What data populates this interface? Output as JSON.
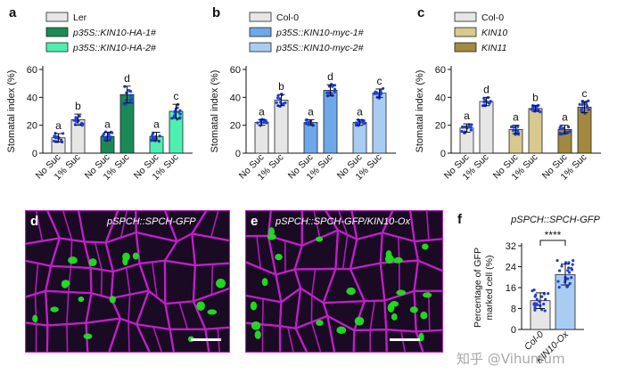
{
  "panels": {
    "a": {
      "letter": "a"
    },
    "b": {
      "letter": "b"
    },
    "c": {
      "letter": "c"
    },
    "d": {
      "letter": "d",
      "label": "pSPCH::SPCH-GFP"
    },
    "e": {
      "letter": "e",
      "label": "pSPCH::SPCH-GFP/KIN10-Ox"
    },
    "f": {
      "letter": "f"
    }
  },
  "watermark": "知乎 @Vihumum",
  "colors": {
    "magenta": "#c020c8",
    "gfp": "#22e022",
    "dot_blue": "#1f3fd6",
    "a_ctrl": "#e6e6e6",
    "a_s1": "#1a8a55",
    "a_s2": "#4ef0b0",
    "b_ctrl": "#e6e6e6",
    "b_s1": "#6fa8e8",
    "b_s2": "#a9cdf2",
    "c_ctrl": "#e6e6e6",
    "c_s1": "#d8c98e",
    "c_s2": "#a2893f",
    "f_ctrl": "#e6e6e6",
    "f_s1": "#a9cdf2"
  },
  "chart_data": [
    {
      "id": "a",
      "type": "bar",
      "legend": [
        "Ler",
        "p35S::KIN10-HA-1#",
        "p35S::KIN10-HA-2#"
      ],
      "categories": [
        "No Suc",
        "1% Suc",
        "No Suc",
        "1% Suc",
        "No Suc",
        "1% Suc"
      ],
      "values": [
        11,
        24,
        12,
        42,
        12,
        30
      ],
      "errors": [
        3,
        4,
        3,
        6,
        3,
        5
      ],
      "letters": [
        "a",
        "b",
        "a",
        "d",
        "a",
        "c"
      ],
      "ylabel": "Stomatal index (%)",
      "ylim": [
        0,
        60
      ],
      "yticks": [
        0,
        20,
        40,
        60
      ]
    },
    {
      "id": "b",
      "type": "bar",
      "legend": [
        "Col-0",
        "p35S::KIN10-myc-1#",
        "p35S::KIN10-myc-2#"
      ],
      "categories": [
        "No Suc",
        "1% Suc",
        "No Suc",
        "1% Suc",
        "No Suc",
        "1% Suc"
      ],
      "values": [
        22,
        38,
        22,
        45,
        22,
        43
      ],
      "errors": [
        2,
        4,
        2,
        4,
        2,
        3
      ],
      "letters": [
        "a",
        "b",
        "a",
        "d",
        "a",
        "c"
      ],
      "ylabel": "Stomatal index (%)",
      "ylim": [
        0,
        60
      ],
      "yticks": [
        0,
        20,
        40,
        60
      ]
    },
    {
      "id": "c",
      "type": "bar",
      "legend": [
        "Col-0",
        "KIN10",
        "KIN11"
      ],
      "categories": [
        "No Suc",
        "1% Suc",
        "No Suc",
        "1% Suc",
        "No Suc",
        "1% Suc"
      ],
      "values": [
        18,
        37,
        17,
        32,
        17,
        33
      ],
      "errors": [
        3,
        3,
        3,
        2,
        3,
        4
      ],
      "letters": [
        "a",
        "d",
        "a",
        "b",
        "a",
        "c"
      ],
      "ylabel": "Stomatal index (%)",
      "ylim": [
        0,
        60
      ],
      "yticks": [
        0,
        20,
        40,
        60
      ]
    },
    {
      "id": "f",
      "type": "bar",
      "title": "pSPCH::SPCH-GFP",
      "categories": [
        "Col-0",
        "KIN10-Ox"
      ],
      "values": [
        11,
        21
      ],
      "errors": [
        3,
        4
      ],
      "significance": "****",
      "ylabel": "Percentage of GFP marked cell (%)",
      "ylim": [
        0,
        32
      ],
      "yticks": [
        0,
        8,
        16,
        24,
        32
      ]
    }
  ]
}
